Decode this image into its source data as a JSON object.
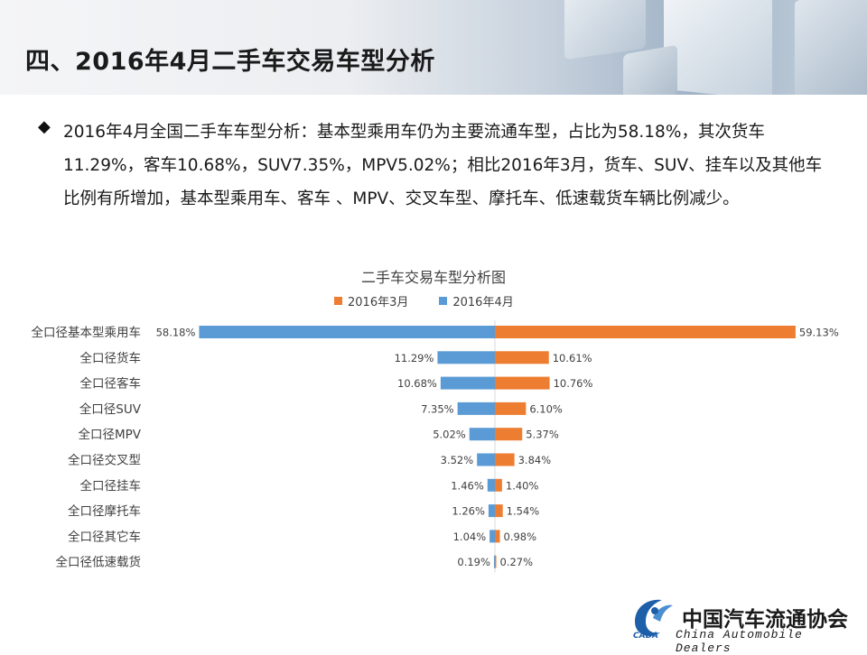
{
  "header": {
    "title": "四、2016年4月二手车交易车型分析"
  },
  "summary": {
    "bullet": "◆",
    "text": "2016年4月全国二手车车型分析：基本型乘用车仍为主要流通车型，占比为58.18%，其次货车11.29%，客车10.68%，SUV7.35%，MPV5.02%；相比2016年3月，货车、SUV、挂车以及其他车比例有所增加，基本型乘用车、客车 、MPV、交叉车型、摩托车、低速载货车辆比例减少。"
  },
  "chart_data": {
    "type": "bar",
    "orientation": "horizontal-butterfly",
    "title": "二手车交易车型分析图",
    "categories": [
      "全口径基本型乘用车",
      "全口径货车",
      "全口径客车",
      "全口径SUV",
      "全口径MPV",
      "全口径交叉型",
      "全口径挂车",
      "全口径摩托车",
      "全口径其它车",
      "全口径低速载货"
    ],
    "series": [
      {
        "name": "2016年3月",
        "color": "#ED7D31",
        "side": "right",
        "values": [
          59.13,
          10.61,
          10.76,
          6.1,
          5.37,
          3.84,
          1.4,
          1.54,
          0.98,
          0.27
        ],
        "labels": [
          "59.13%",
          "10.61%",
          "10.76%",
          "6.10%",
          "5.37%",
          "3.84%",
          "1.40%",
          "1.54%",
          "0.98%",
          "0.27%"
        ]
      },
      {
        "name": "2016年4月",
        "color": "#5B9BD5",
        "side": "left",
        "values": [
          58.18,
          11.29,
          10.68,
          7.35,
          5.02,
          3.52,
          1.46,
          1.26,
          1.04,
          0.19
        ],
        "labels": [
          "58.18%",
          "11.29%",
          "10.68%",
          "7.35%",
          "5.02%",
          "3.52%",
          "1.46%",
          "1.26%",
          "1.04%",
          "0.19%"
        ]
      }
    ],
    "legend_position": "top",
    "grid": false
  },
  "logo": {
    "name_cn": "中国汽车流通协会",
    "name_en": "China Automobile Dealers",
    "mark_text": "CADA"
  }
}
